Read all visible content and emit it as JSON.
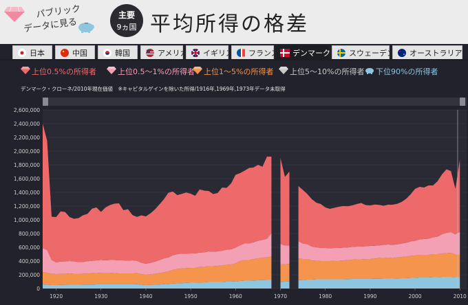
{
  "header": {
    "logo_line1": "パブリック",
    "logo_line2": "データに見る",
    "badge_top": "主要",
    "badge_bottom": "9ヵ国",
    "title": "平均所得の格差"
  },
  "tabs": [
    {
      "label": "日本",
      "flag": "japan-flag-icon",
      "active": false
    },
    {
      "label": "中国",
      "flag": "china-flag-icon",
      "active": false
    },
    {
      "label": "韓国",
      "flag": "korea-flag-icon",
      "active": false
    },
    {
      "label": "アメリカ",
      "flag": "usa-flag-icon",
      "active": false
    },
    {
      "label": "イギリス",
      "flag": "uk-flag-icon",
      "active": false
    },
    {
      "label": "フランス",
      "flag": "france-flag-icon",
      "active": false
    },
    {
      "label": "デンマーク",
      "flag": "denmark-flag-icon",
      "active": true
    },
    {
      "label": "スウェーデン",
      "flag": "sweden-flag-icon",
      "active": false
    },
    {
      "label": "オーストラリア",
      "flag": "australia-flag-icon",
      "active": false
    }
  ],
  "legend": [
    {
      "label": "上位0.5%の所得者",
      "color": "#ee6a6a",
      "icon": "red-gem-icon"
    },
    {
      "label": "上位0.5〜1%の所得者",
      "color": "#f4a0b4",
      "icon": "pink-gem-icon"
    },
    {
      "label": "上位1〜5%の所得者",
      "color": "#f5944c",
      "icon": "orange-gem-icon"
    },
    {
      "label": "上位5〜10%の所得者",
      "color": "#c8c8c8",
      "icon": "silver-ore-icon"
    },
    {
      "label": "下位90%の所得者",
      "color": "#8ec6e0",
      "icon": "piggy-bank-icon"
    }
  ],
  "note": "デンマーク・クローネ/2010年現在価値　※キャピタルゲインを除いた所得/1916年,1969年,1973年データ未取得",
  "chart_data": {
    "type": "area",
    "stacked": true,
    "ylim": [
      0,
      2600000
    ],
    "yticks": [
      "0",
      "200,000",
      "400,000",
      "600,000",
      "800,000",
      "1,000,000",
      "1,200,000",
      "1,400,000",
      "1,600,000",
      "1,800,000",
      "2,000,000",
      "2,200,000",
      "2,400,000",
      "2,600,000"
    ],
    "xticks": [
      1920,
      1930,
      1940,
      1950,
      1960,
      1970,
      1980,
      1990,
      2000,
      2010
    ],
    "grid": true,
    "legend_position": "top",
    "missing_years": [
      1916,
      1969,
      1973
    ],
    "years": [
      1917,
      1918,
      1919,
      1920,
      1921,
      1922,
      1923,
      1924,
      1925,
      1926,
      1927,
      1928,
      1929,
      1930,
      1931,
      1932,
      1933,
      1934,
      1935,
      1936,
      1937,
      1938,
      1939,
      1940,
      1941,
      1942,
      1943,
      1944,
      1945,
      1946,
      1947,
      1948,
      1949,
      1950,
      1951,
      1952,
      1953,
      1954,
      1955,
      1956,
      1957,
      1958,
      1959,
      1960,
      1961,
      1962,
      1963,
      1964,
      1965,
      1966,
      1967,
      1968,
      1969,
      1970,
      1971,
      1972,
      1973,
      1974,
      1975,
      1976,
      1977,
      1978,
      1979,
      1980,
      1981,
      1982,
      1983,
      1984,
      1985,
      1986,
      1987,
      1988,
      1989,
      1990,
      1991,
      1992,
      1993,
      1994,
      1995,
      1996,
      1997,
      1998,
      1999,
      2000,
      2001,
      2002,
      2003,
      2004,
      2005,
      2006,
      2007,
      2008,
      2009,
      2010
    ],
    "series": [
      {
        "name": "下位90%の所得者",
        "color": "#8ec6e0",
        "values": [
          60000,
          55000,
          50000,
          50000,
          52000,
          54000,
          55000,
          55000,
          55000,
          56000,
          57000,
          58000,
          60000,
          60000,
          60000,
          60000,
          60000,
          60000,
          60000,
          60000,
          60000,
          62000,
          55000,
          50000,
          52000,
          55000,
          58000,
          62000,
          68000,
          72000,
          75000,
          78000,
          82000,
          85000,
          85000,
          88000,
          90000,
          95000,
          95000,
          95000,
          95000,
          100000,
          100000,
          105000,
          110000,
          115000,
          115000,
          118000,
          120000,
          122000,
          125000,
          125000,
          null,
          95000,
          100000,
          102000,
          null,
          120000,
          125000,
          130000,
          130000,
          135000,
          135000,
          135000,
          135000,
          135000,
          135000,
          135000,
          138000,
          140000,
          140000,
          140000,
          140000,
          140000,
          142000,
          143000,
          145000,
          145000,
          145000,
          148000,
          150000,
          150000,
          155000,
          155000,
          160000,
          160000,
          160000,
          165000,
          165000,
          170000,
          170000,
          170000,
          165000,
          165000
        ]
      },
      {
        "name": "上位5〜10%の所得者",
        "color": "#c8c8c8",
        "values": [
          0,
          0,
          0,
          0,
          0,
          0,
          0,
          0,
          0,
          0,
          0,
          0,
          0,
          0,
          0,
          0,
          0,
          0,
          0,
          0,
          0,
          0,
          0,
          0,
          0,
          0,
          0,
          0,
          0,
          0,
          0,
          0,
          0,
          0,
          0,
          0,
          0,
          0,
          0,
          0,
          0,
          0,
          0,
          0,
          0,
          0,
          0,
          0,
          0,
          0,
          0,
          0,
          null,
          0,
          0,
          0,
          null,
          0,
          0,
          0,
          0,
          0,
          0,
          0,
          0,
          0,
          0,
          0,
          0,
          0,
          0,
          0,
          0,
          0,
          0,
          0,
          0,
          0,
          0,
          0,
          0,
          0,
          0,
          0,
          0,
          0,
          0,
          0,
          0,
          0,
          0,
          0,
          0,
          0
        ]
      },
      {
        "name": "上位1〜5%の所得者",
        "color": "#f5944c",
        "values": [
          180000,
          175000,
          165000,
          160000,
          160000,
          160000,
          165000,
          160000,
          160000,
          160000,
          160000,
          165000,
          165000,
          170000,
          170000,
          170000,
          165000,
          160000,
          160000,
          160000,
          160000,
          160000,
          155000,
          150000,
          155000,
          160000,
          165000,
          175000,
          180000,
          200000,
          210000,
          215000,
          215000,
          215000,
          215000,
          225000,
          225000,
          230000,
          230000,
          235000,
          240000,
          245000,
          250000,
          260000,
          290000,
          300000,
          300000,
          310000,
          320000,
          325000,
          330000,
          340000,
          null,
          255000,
          255000,
          255000,
          null,
          320000,
          305000,
          300000,
          280000,
          270000,
          265000,
          265000,
          265000,
          270000,
          270000,
          275000,
          275000,
          280000,
          285000,
          285000,
          290000,
          290000,
          295000,
          300000,
          300000,
          305000,
          300000,
          305000,
          310000,
          315000,
          320000,
          325000,
          330000,
          330000,
          330000,
          335000,
          335000,
          340000,
          345000,
          350000,
          330000,
          330000
        ]
      },
      {
        "name": "上位0.5〜1%の所得者",
        "color": "#f4a0b4",
        "values": [
          350000,
          330000,
          200000,
          170000,
          180000,
          180000,
          180000,
          180000,
          170000,
          170000,
          180000,
          180000,
          185000,
          185000,
          180000,
          185000,
          190000,
          190000,
          190000,
          185000,
          190000,
          180000,
          165000,
          160000,
          165000,
          175000,
          190000,
          200000,
          205000,
          210000,
          215000,
          215000,
          210000,
          210000,
          210000,
          210000,
          210000,
          215000,
          210000,
          210000,
          215000,
          220000,
          220000,
          230000,
          230000,
          240000,
          240000,
          245000,
          255000,
          260000,
          270000,
          340000,
          null,
          300000,
          270000,
          270000,
          null,
          250000,
          225000,
          215000,
          200000,
          195000,
          190000,
          190000,
          185000,
          185000,
          185000,
          185000,
          185000,
          185000,
          185000,
          185000,
          185000,
          190000,
          185000,
          185000,
          190000,
          190000,
          190000,
          190000,
          195000,
          200000,
          210000,
          215000,
          225000,
          230000,
          235000,
          245000,
          255000,
          280000,
          295000,
          300000,
          295000,
          330000
        ]
      },
      {
        "name": "上位0.5%の所得者",
        "color": "#ee6a6a",
        "values": [
          1810000,
          1590000,
          630000,
          660000,
          730000,
          720000,
          640000,
          620000,
          640000,
          680000,
          690000,
          760000,
          770000,
          700000,
          770000,
          800000,
          820000,
          830000,
          730000,
          750000,
          660000,
          640000,
          690000,
          690000,
          720000,
          760000,
          810000,
          860000,
          940000,
          930000,
          860000,
          870000,
          890000,
          870000,
          840000,
          920000,
          900000,
          880000,
          840000,
          850000,
          920000,
          900000,
          960000,
          1060000,
          1050000,
          1060000,
          1100000,
          1090000,
          1105000,
          1065000,
          1195000,
          1115000,
          null,
          1250000,
          1000000,
          1075000,
          null,
          800000,
          780000,
          730000,
          690000,
          650000,
          640000,
          590000,
          575000,
          585000,
          600000,
          605000,
          600000,
          605000,
          620000,
          635000,
          600000,
          590000,
          600000,
          590000,
          570000,
          580000,
          585000,
          590000,
          605000,
          640000,
          685000,
          755000,
          765000,
          750000,
          775000,
          755000,
          805000,
          870000,
          925000,
          890000,
          660000,
          1050000
        ]
      }
    ]
  }
}
